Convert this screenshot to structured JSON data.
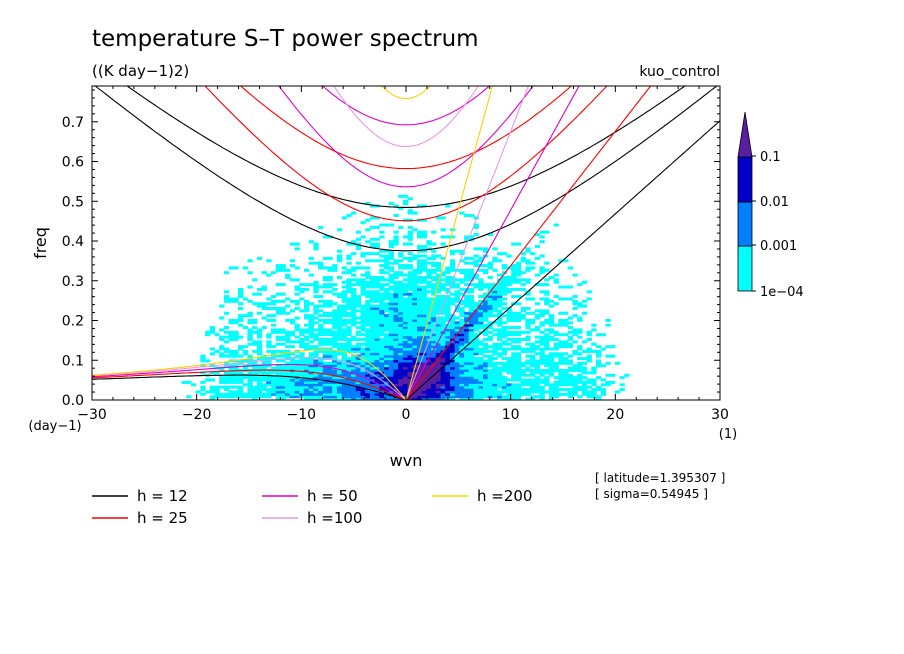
{
  "chart_data": {
    "type": "heatmap",
    "title": "temperature S–T power spectrum",
    "subtitle": "((K day−1)2)",
    "run_label": "kuo_control",
    "xlabel": "wvn",
    "ylabel": "freq",
    "x_unit": "(1)",
    "y_unit": "(day−1)",
    "xlim": [
      -30,
      30
    ],
    "ylim": [
      0.0,
      0.79
    ],
    "x_ticks": [
      -30,
      -20,
      -10,
      0,
      10,
      20,
      30
    ],
    "x_tick_labels": [
      "−30",
      "−20",
      "−10",
      "0",
      "10",
      "20",
      "30"
    ],
    "y_ticks": [
      0.0,
      0.1,
      0.2,
      0.3,
      0.4,
      0.5,
      0.6,
      0.7
    ],
    "y_tick_labels": [
      "0.0",
      "0.1",
      "0.2",
      "0.3",
      "0.4",
      "0.5",
      "0.6",
      "0.7"
    ],
    "colorbar": {
      "levels": [
        0.0001,
        0.001,
        0.01,
        0.1
      ],
      "labels": [
        "1e−04",
        "0.001",
        "0.01",
        "0.1"
      ],
      "colors": [
        "#00ffff",
        "#0080ff",
        "#0000c8",
        "#5a1fa0"
      ]
    },
    "contour_levels": [
      0.0001,
      0.001,
      0.01,
      0.1
    ],
    "dispersion_curves": [
      {
        "label": "h = 12",
        "h": 12,
        "color": "#000000"
      },
      {
        "label": "h = 25",
        "h": 25,
        "color": "#ff0000"
      },
      {
        "label": "h = 50",
        "h": 50,
        "color": "#e000c8"
      },
      {
        "label": "h =100",
        "h": 100,
        "color": "#e699e6"
      },
      {
        "label": "h =200",
        "h": 200,
        "color": "#ffd000"
      }
    ],
    "info": [
      "[ latitude=1.395307 ]",
      "[ sigma=0.54945 ]"
    ]
  }
}
